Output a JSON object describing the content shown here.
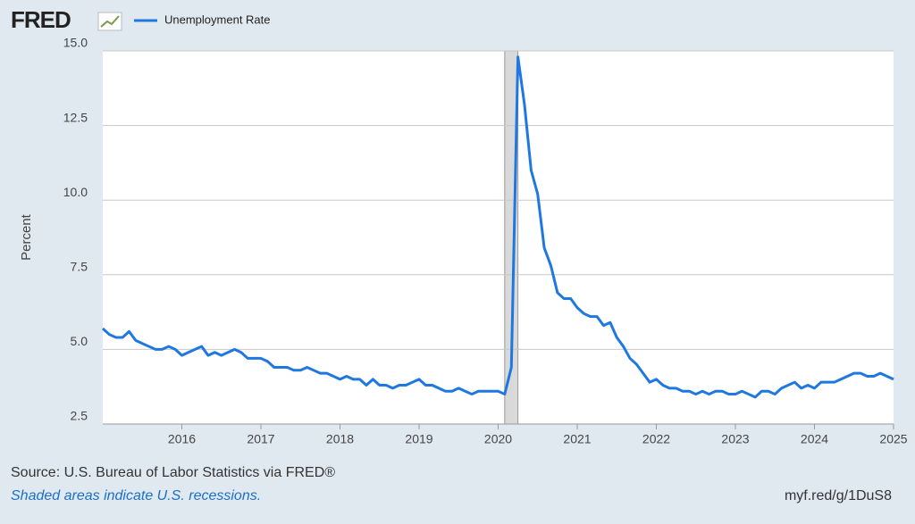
{
  "chart_data": {
    "type": "line",
    "logo": "FRED",
    "y_label": "Percent",
    "source": "Source: U.S. Bureau of Labor Statistics via FRED®",
    "note": "Shaded areas indicate U.S. recessions.",
    "url": "myf.red/g/1DuS8",
    "xlim": [
      2015,
      2025
    ],
    "xticks": [
      2016,
      2017,
      2018,
      2019,
      2020,
      2021,
      2022,
      2023,
      2024,
      2025
    ],
    "ylim": [
      2.5,
      15
    ],
    "yticks": [
      2.5,
      {
        "value": 5,
        "label": "5.0"
      },
      7.5,
      {
        "value": 10,
        "label": "10.0"
      },
      12.5,
      {
        "value": 15,
        "label": "15.0"
      }
    ],
    "grid": true,
    "recessions": [
      {
        "start": 2020.083,
        "end": 2020.25
      }
    ],
    "series": [
      {
        "name": "Unemployment Rate",
        "color": "#1f77e0",
        "x": [
          2015,
          2015.083,
          2015.167,
          2015.25,
          2015.333,
          2015.417,
          2015.5,
          2015.583,
          2015.667,
          2015.75,
          2015.833,
          2015.917,
          2016,
          2016.083,
          2016.167,
          2016.25,
          2016.333,
          2016.417,
          2016.5,
          2016.583,
          2016.667,
          2016.75,
          2016.833,
          2016.917,
          2017,
          2017.083,
          2017.167,
          2017.25,
          2017.333,
          2017.417,
          2017.5,
          2017.583,
          2017.667,
          2017.75,
          2017.833,
          2017.917,
          2018,
          2018.083,
          2018.167,
          2018.25,
          2018.333,
          2018.417,
          2018.5,
          2018.583,
          2018.667,
          2018.75,
          2018.833,
          2018.917,
          2019,
          2019.083,
          2019.167,
          2019.25,
          2019.333,
          2019.417,
          2019.5,
          2019.583,
          2019.667,
          2019.75,
          2019.833,
          2019.917,
          2020,
          2020.083,
          2020.167,
          2020.25,
          2020.333,
          2020.417,
          2020.5,
          2020.583,
          2020.667,
          2020.75,
          2020.833,
          2020.917,
          2021,
          2021.083,
          2021.167,
          2021.25,
          2021.333,
          2021.417,
          2021.5,
          2021.583,
          2021.667,
          2021.75,
          2021.833,
          2021.917,
          2022,
          2022.083,
          2022.167,
          2022.25,
          2022.333,
          2022.417,
          2022.5,
          2022.583,
          2022.667,
          2022.75,
          2022.833,
          2022.917,
          2023,
          2023.083,
          2023.167,
          2023.25,
          2023.333,
          2023.417,
          2023.5,
          2023.583,
          2023.667,
          2023.75,
          2023.833,
          2023.917,
          2024,
          2024.083,
          2024.167,
          2024.25,
          2024.333,
          2024.417,
          2024.5,
          2024.583,
          2024.667,
          2024.75,
          2024.833,
          2024.917,
          2025
        ],
        "values": [
          5.7,
          5.5,
          5.4,
          5.4,
          5.6,
          5.3,
          5.2,
          5.1,
          5.0,
          5.0,
          5.1,
          5.0,
          4.8,
          4.9,
          5.0,
          5.1,
          4.8,
          4.9,
          4.8,
          4.9,
          5.0,
          4.9,
          4.7,
          4.7,
          4.7,
          4.6,
          4.4,
          4.4,
          4.4,
          4.3,
          4.3,
          4.4,
          4.3,
          4.2,
          4.2,
          4.1,
          4.0,
          4.1,
          4.0,
          4.0,
          3.8,
          4.0,
          3.8,
          3.8,
          3.7,
          3.8,
          3.8,
          3.9,
          4.0,
          3.8,
          3.8,
          3.7,
          3.6,
          3.6,
          3.7,
          3.6,
          3.5,
          3.6,
          3.6,
          3.6,
          3.6,
          3.5,
          4.4,
          14.8,
          13.2,
          11.0,
          10.2,
          8.4,
          7.8,
          6.9,
          6.7,
          6.7,
          6.4,
          6.2,
          6.1,
          6.1,
          5.8,
          5.9,
          5.4,
          5.1,
          4.7,
          4.5,
          4.2,
          3.9,
          4.0,
          3.8,
          3.7,
          3.7,
          3.6,
          3.6,
          3.5,
          3.6,
          3.5,
          3.6,
          3.6,
          3.5,
          3.5,
          3.6,
          3.5,
          3.4,
          3.6,
          3.6,
          3.5,
          3.7,
          3.8,
          3.9,
          3.7,
          3.8,
          3.7,
          3.9,
          3.9,
          3.9,
          4.0,
          4.1,
          4.2,
          4.2,
          4.1,
          4.1,
          4.2,
          4.1,
          4.0
        ]
      }
    ]
  }
}
